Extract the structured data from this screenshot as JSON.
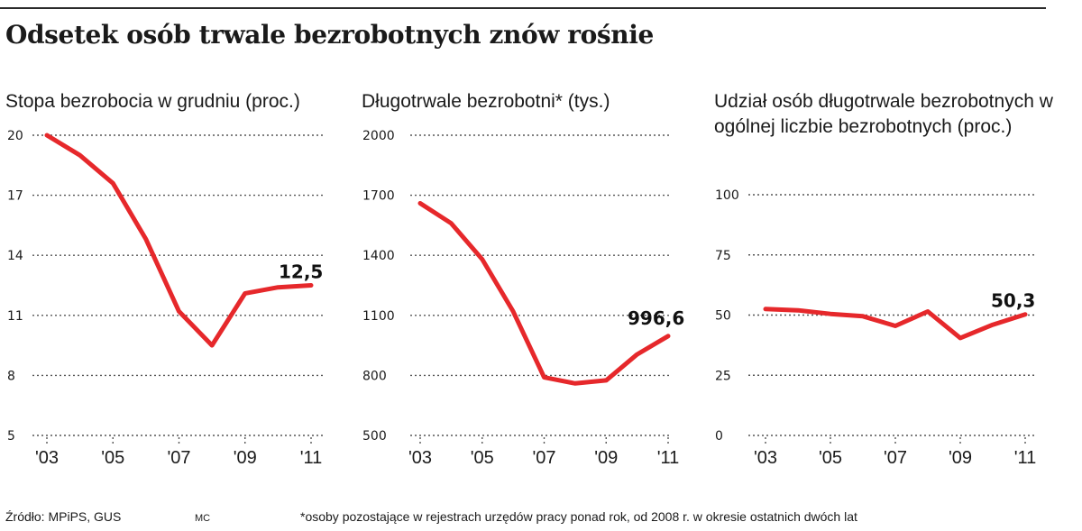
{
  "title": "Odsetek osób trwale bezrobotnych znów rośnie",
  "footer": {
    "source": "Źródło: MPiPS, GUS",
    "author": "MC",
    "note": "*osoby pozostające w rejestrach urzędów pracy ponad rok, od 2008 r. w okresie ostatnich dwóch lat"
  },
  "colors": {
    "line": "#e6282b",
    "grid": "#555555",
    "text": "#1a1a1a"
  },
  "chart_data": [
    {
      "type": "line",
      "title": "Stopa bezrobocia w grudniu (proc.)",
      "x": [
        2003,
        2004,
        2005,
        2006,
        2007,
        2008,
        2009,
        2010,
        2011
      ],
      "x_tick_labels": [
        "'03",
        "'05",
        "'07",
        "'09",
        "'11"
      ],
      "x_tick_values": [
        2003,
        2005,
        2007,
        2009,
        2011
      ],
      "xlim": [
        2003,
        2011
      ],
      "ylim": [
        5,
        20
      ],
      "y_ticks": [
        5,
        8,
        11,
        14,
        17,
        20
      ],
      "y_tick_labels": [
        "5",
        "8",
        "11",
        "14",
        "17",
        "20"
      ],
      "values": [
        20.0,
        19.0,
        17.6,
        14.8,
        11.2,
        9.5,
        12.1,
        12.4,
        12.5
      ],
      "end_label": "12,5",
      "grid": true
    },
    {
      "type": "line",
      "title": "Długotrwale bezrobotni* (tys.)",
      "x": [
        2003,
        2004,
        2005,
        2006,
        2007,
        2008,
        2009,
        2010,
        2011
      ],
      "x_tick_labels": [
        "'03",
        "'05",
        "'07",
        "'09",
        "'11"
      ],
      "x_tick_values": [
        2003,
        2005,
        2007,
        2009,
        2011
      ],
      "xlim": [
        2003,
        2011
      ],
      "ylim": [
        500,
        2000
      ],
      "y_ticks": [
        500,
        800,
        1100,
        1400,
        1700,
        2000
      ],
      "y_tick_labels": [
        "500",
        "800",
        "1100",
        "1400",
        "1700",
        "2000"
      ],
      "values": [
        1660,
        1560,
        1380,
        1120,
        790,
        760,
        775,
        905,
        996.6
      ],
      "end_label": "996,6",
      "grid": true
    },
    {
      "type": "line",
      "title": "Udział osób długotrwale bezrobotnych w ogólnej liczbie bezrobotnych (proc.)",
      "x": [
        2003,
        2004,
        2005,
        2006,
        2007,
        2008,
        2009,
        2010,
        2011
      ],
      "x_tick_labels": [
        "'03",
        "'05",
        "'07",
        "'09",
        "'11"
      ],
      "x_tick_values": [
        2003,
        2005,
        2007,
        2009,
        2011
      ],
      "xlim": [
        2003,
        2011
      ],
      "ylim": [
        0,
        100
      ],
      "y_ticks": [
        0,
        25,
        50,
        75,
        100
      ],
      "y_tick_labels": [
        "0",
        "25",
        "50",
        "75",
        "100"
      ],
      "values": [
        52.5,
        52.0,
        50.5,
        49.5,
        45.5,
        51.5,
        40.5,
        46.0,
        50.3
      ],
      "end_label": "50,3",
      "grid": true
    }
  ]
}
